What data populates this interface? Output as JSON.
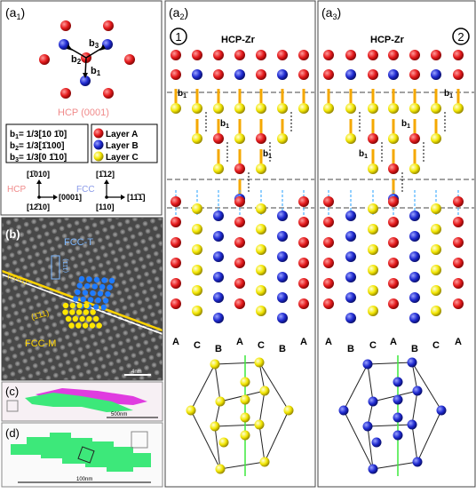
{
  "panels": {
    "a1": {
      "label": "(a",
      "label_sub": "1",
      "label_close": ")",
      "plane": "HCP (0001)",
      "vectors": [
        {
          "name": "b",
          "sub": "1",
          "def": "= 1/3[",
          "idx": "10 1̄0",
          "close": "]"
        },
        {
          "name": "b",
          "sub": "2",
          "def": "= 1/3[",
          "idx": "1̄100",
          "close": "]"
        },
        {
          "name": "b",
          "sub": "3",
          "def": "= 1/3[",
          "idx": "0 1̄10",
          "close": "]"
        }
      ],
      "arrow_labels": {
        "b1": "b",
        "b2": "b",
        "b3": "b"
      },
      "legend": [
        {
          "label": "Layer A",
          "color": "#e41a1c"
        },
        {
          "label": "Layer B",
          "color": "#1f2ad0"
        },
        {
          "label": "Layer C",
          "color": "#f2e600"
        }
      ],
      "axes": {
        "hcp_label": "HCP",
        "fcc_label": "FCC",
        "hcp_up": "[1̄010]",
        "hcp_right": "[0001]",
        "hcp_out": "[12̄10]",
        "fcc_up": "[1̄12]",
        "fcc_right": "[11̄1̄]",
        "fcc_out": "[110]"
      }
    },
    "a2": {
      "label": "(a",
      "label_sub": "2",
      "label_close": ")",
      "title": "HCP-Zr",
      "circle_num": "1",
      "b_label": "b",
      "b_sub": "1",
      "stack": [
        "A",
        "C",
        "B",
        "A",
        "C",
        "B",
        "A"
      ]
    },
    "a3": {
      "label": "(a",
      "label_sub": "3",
      "label_close": ")",
      "title": "HCP-Zr",
      "circle_num": "2",
      "b_label": "b",
      "b_sub": "1",
      "stack": [
        "A",
        "B",
        "C",
        "A",
        "B",
        "C",
        "A"
      ]
    },
    "b": {
      "label": "(b)",
      "fcc_t": "FCC-T",
      "fcc_m": "FCC-M",
      "plane_t": "(11̄1)",
      "plane_m": "(1̄11)",
      "hcp_plane": "(0001)",
      "scale": "4nm"
    },
    "c": {
      "label": "(c)",
      "scale": "500nm"
    },
    "d": {
      "label": "(d)",
      "scale": "100nm"
    }
  },
  "colors": {
    "layer_a": "#e41a1c",
    "layer_b": "#1f2ad0",
    "layer_c": "#f2e600",
    "bond": "#f5a800",
    "plane_blue": "#7ab6ff",
    "plane_yellow": "#ffd400",
    "cluster_magenta": "#e03ce0",
    "cluster_green": "#3de87a"
  }
}
